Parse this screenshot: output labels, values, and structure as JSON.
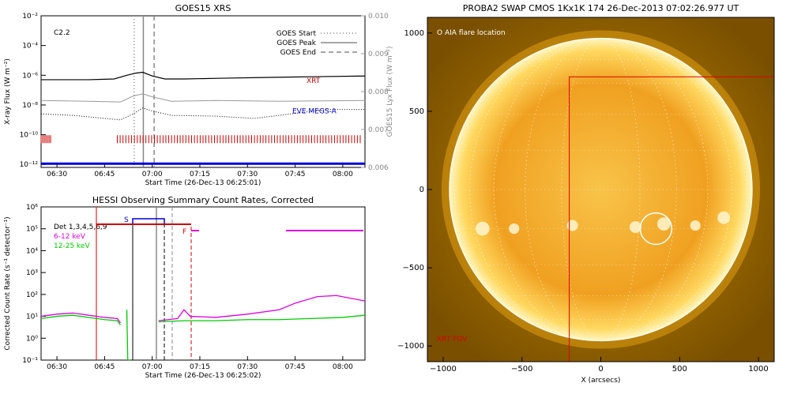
{
  "chart_data": [
    {
      "type": "line",
      "title": "GOES15 XRS",
      "xlabel": "Start Time (26-Dec-13 06:25:01)",
      "ylabel": "X-ray Flux (W m⁻²)",
      "y2label": "GOES15 Lyx Flux (W m⁻²)",
      "x_ticks": [
        "06:30",
        "06:45",
        "07:00",
        "07:15",
        "07:30",
        "07:45",
        "08:00"
      ],
      "y_ticks": [
        "10⁻¹²",
        "10⁻¹⁰",
        "10⁻⁸",
        "10⁻⁶",
        "10⁻⁴",
        "10⁻²"
      ],
      "y2_ticks": [
        "0.006",
        "0.007",
        "0.008",
        "0.009",
        "0.010"
      ],
      "xlim_minutes": [
        25,
        71
      ],
      "ylim_log10": [
        -12.2,
        -2
      ],
      "y2lim": [
        0.006,
        0.01
      ],
      "flare_class": "C2.2",
      "legend": [
        "GOES Start",
        "GOES Peak",
        "GOES End"
      ],
      "legend_position": "top-right",
      "vlines": [
        {
          "label": "GOES Start",
          "minute": 54.3,
          "style": "dotted"
        },
        {
          "label": "GOES Peak",
          "minute": 57.2,
          "style": "solid"
        },
        {
          "label": "GOES End",
          "minute": 60.6,
          "style": "dashed"
        }
      ],
      "series": [
        {
          "name": "XRT",
          "color": "#cc0000",
          "x_minutes": [
            25,
            35,
            45,
            50,
            54,
            57,
            60,
            63,
            66,
            70
          ],
          "values_log10": [
            -6.3,
            -6.3,
            -6.3,
            -6.05,
            -5.8,
            -5.9,
            -6.2,
            -6.2,
            -6.15,
            -6.1
          ]
        },
        {
          "name": "EVE MEGS-A",
          "color": "#0000cc",
          "x_minutes": [
            25,
            35,
            45,
            50,
            54,
            57,
            60,
            63,
            66,
            70
          ],
          "values_log10": [
            -8.4,
            -8.5,
            -8.7,
            -8.8,
            -8.6,
            -8.3,
            -8.5,
            -8.6,
            -8.65,
            -8.5
          ]
        }
      ]
    },
    {
      "type": "line",
      "title": "HESSI Observing Summary Count Rates, Corrected",
      "xlabel": "Start Time (26-Dec-13 06:25:02)",
      "ylabel": "Corrected Count Rate (s⁻¹ detector⁻¹)",
      "x_ticks": [
        "06:30",
        "06:45",
        "07:00",
        "07:15",
        "07:30",
        "07:45",
        "08:00"
      ],
      "y_ticks": [
        "10⁻¹",
        "10⁰",
        "10¹",
        "10²",
        "10³",
        "10⁴",
        "10⁵",
        "10⁶"
      ],
      "xlim_minutes": [
        25,
        71
      ],
      "ylim_log10": [
        -1,
        6
      ],
      "detectors": "Det 1,3,4,5,6,9",
      "legend_position": "top-left",
      "markers": [
        "S",
        "F"
      ],
      "series": [
        {
          "name": "6-12 keV",
          "color": "#dd00dd",
          "x_minutes": [
            25,
            35,
            45,
            50,
            55,
            60,
            65,
            70
          ],
          "values_log10": [
            1.0,
            1.1,
            0.9,
            0.8,
            0.85,
            1.1,
            1.6,
            1.8
          ]
        },
        {
          "name": "12-25 keV",
          "color": "#00cc00",
          "x_minutes": [
            25,
            35,
            45,
            50,
            55,
            60,
            65,
            70
          ],
          "values_log10": [
            0.9,
            1.0,
            0.85,
            0.8,
            0.75,
            0.8,
            0.9,
            1.0
          ]
        }
      ]
    },
    {
      "type": "heatmap",
      "title": "PROBA2 SWAP CMOS 1Kx1K 174 26-Dec-2013 07:02:26.977 UT",
      "xlabel": "X (arcsecs)",
      "ylabel": "",
      "x_ticks": [
        -1000,
        -500,
        0,
        500,
        1000
      ],
      "y_ticks": [
        -1000,
        -500,
        0,
        500,
        1000
      ],
      "xlim": [
        -1100,
        1100
      ],
      "ylim": [
        -1100,
        1100
      ],
      "annotations": [
        "O AIA flare location",
        "XRT FOV"
      ],
      "flare_location_arcsec": [
        350,
        -250
      ],
      "xrt_fov_arcsec": [
        -200,
        -1100,
        1100,
        720
      ]
    }
  ]
}
